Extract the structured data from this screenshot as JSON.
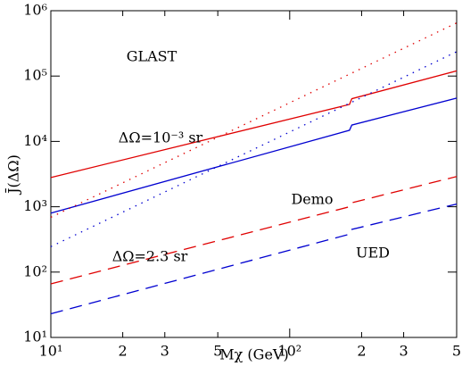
{
  "chart_data": {
    "type": "line",
    "xlabel": "Mχ (GeV)",
    "ylabel": "J̄(ΔΩ)",
    "log_x": true,
    "log_y": true,
    "xlim": [
      10,
      500
    ],
    "ylim": [
      10,
      1000000
    ],
    "xticks": [
      {
        "value": 10,
        "label": "10¹"
      },
      {
        "value": 20,
        "label": "2"
      },
      {
        "value": 30,
        "label": "3"
      },
      {
        "value": 50,
        "label": "5"
      },
      {
        "value": 100,
        "label": "10²"
      },
      {
        "value": 200,
        "label": "2"
      },
      {
        "value": 300,
        "label": "3"
      },
      {
        "value": 500,
        "label": "5"
      }
    ],
    "yticks": [
      {
        "value": 10,
        "label": "10¹"
      },
      {
        "value": 100,
        "label": "10²"
      },
      {
        "value": 1000,
        "label": "10³"
      },
      {
        "value": 10000,
        "label": "10⁴"
      },
      {
        "value": 100000,
        "label": "10⁵"
      },
      {
        "value": 1000000,
        "label": "10⁶"
      }
    ],
    "x": [
      10,
      178,
      182,
      500
    ],
    "series": [
      {
        "color": "#e00000",
        "dash": "solid",
        "values": [
          2800,
          36800,
          45000,
          120000
        ]
      },
      {
        "color": "#0000d0",
        "dash": "solid",
        "values": [
          800,
          14800,
          17800,
          46000
        ]
      },
      {
        "color": "#e00000",
        "dash": "dotted",
        "values": [
          690,
          107000,
          111000,
          650000
        ]
      },
      {
        "color": "#0000d0",
        "dash": "dotted",
        "values": [
          245,
          38300,
          39800,
          236000
        ]
      },
      {
        "color": "#e00000",
        "dash": "dashed",
        "values": [
          66,
          1000,
          1150,
          2900
        ]
      },
      {
        "color": "#0000d0",
        "dash": "dashed",
        "values": [
          23,
          380,
          450,
          1100
        ]
      }
    ],
    "annotations": [
      {
        "text": "GLAST",
        "color": "#000000"
      },
      {
        "text": "ΔΩ=10⁻³ sr",
        "color": "#000000"
      },
      {
        "text": "ΔΩ=2.3 sr",
        "color": "#000000"
      },
      {
        "text": "Demo",
        "color": "#e00000"
      },
      {
        "text": "UED",
        "color": "#0000d0"
      }
    ]
  }
}
